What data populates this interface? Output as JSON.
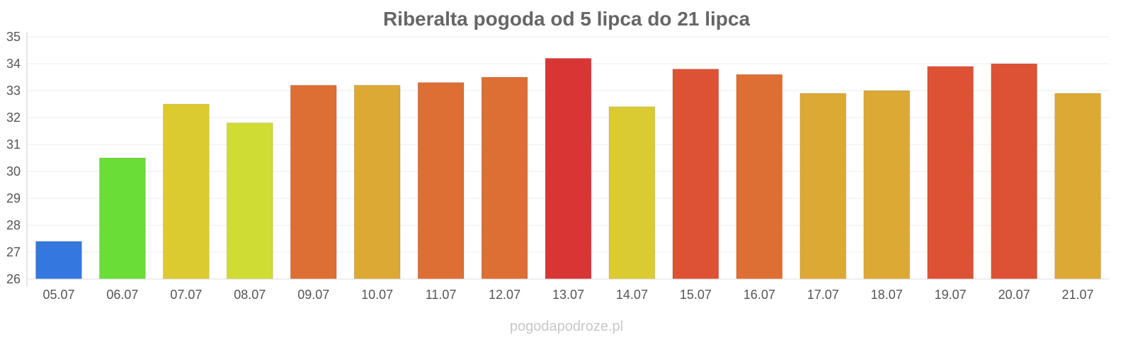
{
  "chart_data": {
    "type": "bar",
    "title": "Riberalta pogoda od 5 lipca do 21 lipca",
    "xlabel": "",
    "ylabel": "",
    "categories": [
      "05.07",
      "06.07",
      "07.07",
      "08.07",
      "09.07",
      "10.07",
      "11.07",
      "12.07",
      "13.07",
      "14.07",
      "15.07",
      "16.07",
      "17.07",
      "18.07",
      "19.07",
      "20.07",
      "21.07"
    ],
    "values": [
      27.4,
      30.5,
      32.5,
      31.8,
      33.2,
      33.2,
      33.3,
      33.5,
      34.2,
      32.4,
      33.8,
      33.6,
      32.9,
      33.0,
      33.9,
      34.0,
      32.9
    ],
    "colors": [
      "#3477df",
      "#6bdd37",
      "#dccb30",
      "#cfdc33",
      "#dd6e34",
      "#dca934",
      "#dd6e34",
      "#dd6e34",
      "#da3535",
      "#dbcb32",
      "#dd5235",
      "#dd6e34",
      "#dca934",
      "#dca934",
      "#dd5235",
      "#dd5235",
      "#dca934"
    ],
    "ylim": [
      26,
      35
    ],
    "yticks": [
      "26",
      "27",
      "28",
      "29",
      "30",
      "31",
      "32",
      "33",
      "34",
      "35"
    ],
    "grid": true,
    "legend": "none"
  },
  "watermark": "pogodapodroze.pl"
}
